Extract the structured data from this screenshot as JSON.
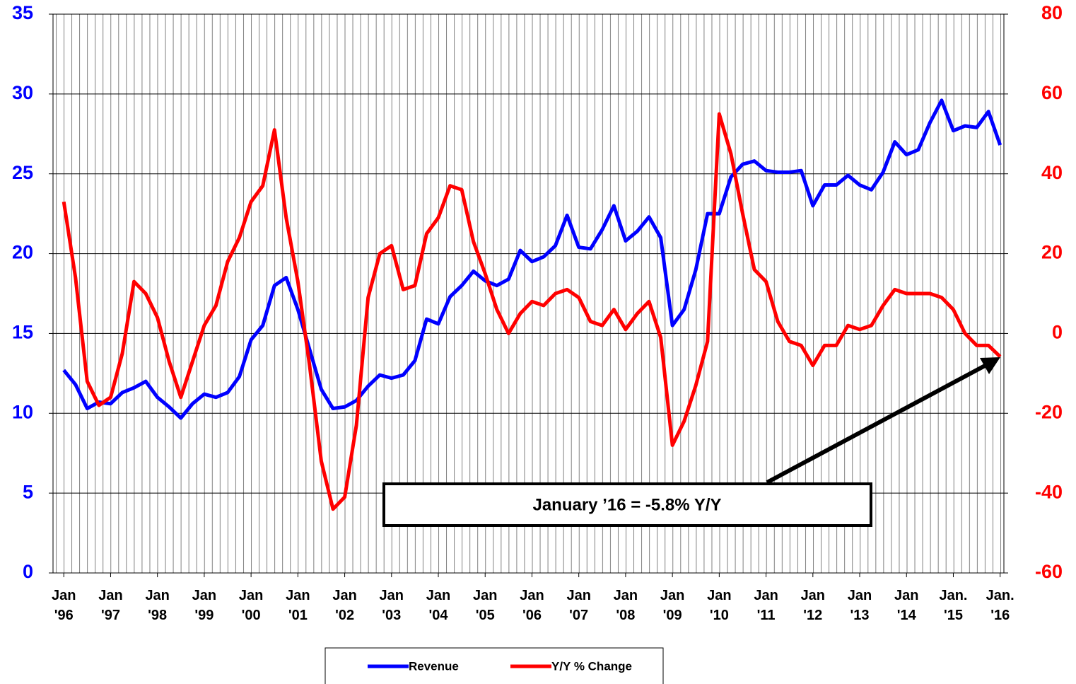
{
  "chart_data": {
    "type": "line",
    "x": [
      1996,
      1996.25,
      1996.5,
      1996.75,
      1997,
      1997.25,
      1997.5,
      1997.75,
      1998,
      1998.25,
      1998.5,
      1998.75,
      1999,
      1999.25,
      1999.5,
      1999.75,
      2000,
      2000.25,
      2000.5,
      2000.75,
      2001,
      2001.25,
      2001.5,
      2001.75,
      2002,
      2002.25,
      2002.5,
      2002.75,
      2003,
      2003.25,
      2003.5,
      2003.75,
      2004,
      2004.25,
      2004.5,
      2004.75,
      2005,
      2005.25,
      2005.5,
      2005.75,
      2006,
      2006.25,
      2006.5,
      2006.75,
      2007,
      2007.25,
      2007.5,
      2007.75,
      2008,
      2008.25,
      2008.5,
      2008.75,
      2009,
      2009.25,
      2009.5,
      2009.75,
      2010,
      2010.25,
      2010.5,
      2010.75,
      2011,
      2011.25,
      2011.5,
      2011.75,
      2012,
      2012.25,
      2012.5,
      2012.75,
      2013,
      2013.25,
      2013.5,
      2013.75,
      2014,
      2014.25,
      2014.5,
      2014.75,
      2015,
      2015.25,
      2015.5,
      2015.75,
      2016
    ],
    "series": [
      {
        "name": "Revenue",
        "color": "#0000ff",
        "axis": "y",
        "values": [
          12.7,
          11.8,
          10.3,
          10.7,
          10.6,
          11.3,
          11.6,
          12.0,
          11.0,
          10.4,
          9.7,
          10.6,
          11.2,
          11.0,
          11.3,
          12.3,
          14.6,
          15.5,
          18.0,
          18.5,
          16.5,
          14.0,
          11.5,
          10.3,
          10.4,
          10.8,
          11.7,
          12.4,
          12.2,
          12.4,
          13.3,
          15.9,
          15.6,
          17.3,
          18.0,
          18.9,
          18.3,
          18.0,
          18.4,
          20.2,
          19.5,
          19.8,
          20.5,
          22.4,
          20.4,
          20.3,
          21.5,
          23.0,
          20.8,
          21.4,
          22.3,
          21.0,
          15.5,
          16.5,
          19.0,
          22.5,
          22.5,
          24.8,
          25.6,
          25.8,
          25.2,
          25.1,
          25.1,
          25.2,
          23.0,
          24.3,
          24.3,
          24.9,
          24.3,
          24.0,
          25.1,
          27.0,
          26.2,
          26.5,
          28.2,
          29.6,
          27.7,
          28.0,
          27.9,
          28.9,
          26.8
        ]
      },
      {
        "name": "Y/Y % Change",
        "color": "#ff0000",
        "axis": "y2",
        "values": [
          33,
          14,
          -12,
          -18,
          -16,
          -5,
          13,
          10,
          4,
          -7,
          -16,
          -7,
          2,
          7,
          18,
          24,
          33,
          37,
          51,
          29,
          13,
          -8,
          -32,
          -44,
          -41,
          -23,
          9,
          20,
          22,
          11,
          12,
          25,
          29,
          37,
          36,
          23,
          15,
          6,
          0,
          5,
          8,
          7,
          10,
          11,
          9,
          3,
          2,
          6,
          1,
          5,
          8,
          -1,
          -28,
          -22,
          -13,
          -2,
          55,
          45,
          30,
          16,
          13,
          3,
          -2,
          -3,
          -8,
          -3,
          -3,
          2,
          1,
          2,
          7,
          11,
          10,
          10,
          10,
          9,
          6,
          0,
          -3,
          -3,
          -5.8
        ]
      }
    ],
    "xlim": [
      1995.77,
      2016.08
    ],
    "xticks": [
      {
        "value": 1996,
        "label": "Jan '96"
      },
      {
        "value": 1997,
        "label": "Jan '97"
      },
      {
        "value": 1998,
        "label": "Jan '98"
      },
      {
        "value": 1999,
        "label": "Jan '99"
      },
      {
        "value": 2000,
        "label": "Jan '00"
      },
      {
        "value": 2001,
        "label": "Jan '01"
      },
      {
        "value": 2002,
        "label": "Jan '02"
      },
      {
        "value": 2003,
        "label": "Jan '03"
      },
      {
        "value": 2004,
        "label": "Jan '04"
      },
      {
        "value": 2005,
        "label": "Jan '05"
      },
      {
        "value": 2006,
        "label": "Jan '06"
      },
      {
        "value": 2007,
        "label": "Jan '07"
      },
      {
        "value": 2008,
        "label": "Jan '08"
      },
      {
        "value": 2009,
        "label": "Jan '09"
      },
      {
        "value": 2010,
        "label": "Jan '10"
      },
      {
        "value": 2011,
        "label": "Jan '11"
      },
      {
        "value": 2012,
        "label": "Jan '12"
      },
      {
        "value": 2013,
        "label": "Jan '13"
      },
      {
        "value": 2014,
        "label": "Jan '14"
      },
      {
        "value": 2015,
        "label": "Jan. '15"
      },
      {
        "value": 2016,
        "label": "Jan. '16"
      }
    ],
    "ylim": [
      0,
      35
    ],
    "yticks": [
      0,
      5,
      10,
      15,
      20,
      25,
      30,
      35
    ],
    "y2lim": [
      -60,
      80
    ],
    "y2ticks": [
      -60,
      -40,
      -20,
      0,
      20,
      40,
      60,
      80
    ],
    "grid": true,
    "legend": "bottom",
    "annotation": "January ’16 = -5.8% Y/Y"
  }
}
